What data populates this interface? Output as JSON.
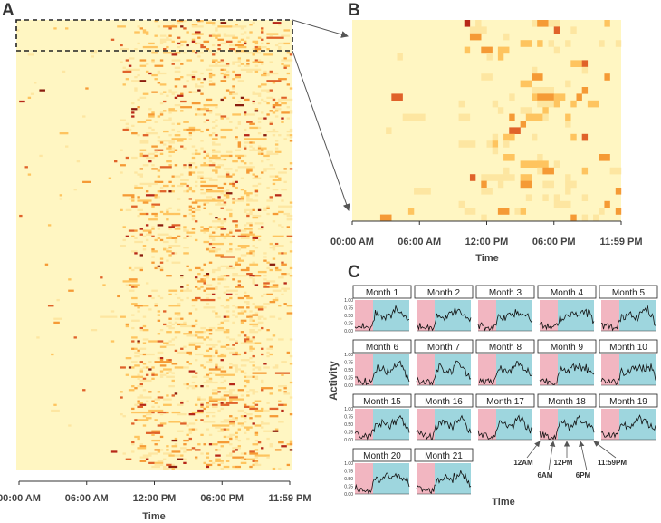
{
  "panels": {
    "a": "A",
    "b": "B",
    "c": "C"
  },
  "chart_data": [
    {
      "id": "A",
      "type": "heatmap",
      "description_label": "A",
      "xlabel": "Time",
      "x_ticks": [
        "00:00 AM",
        "06:00 AM",
        "12:00 PM",
        "06:00 PM",
        "11:59 PM"
      ],
      "x_range_hours": [
        0,
        24
      ],
      "n_rows": 240,
      "bins_per_day": 96,
      "colors": [
        "#fff6c2",
        "#fde6a1",
        "#fec45f",
        "#f59a35",
        "#e0622a",
        "#b72818",
        "#8a1d0e"
      ],
      "highlight": "top rows magnified in panel B"
    },
    {
      "id": "B",
      "type": "heatmap",
      "xlabel": "Time",
      "x_ticks": [
        "00:00 AM",
        "06:00 AM",
        "12:00 PM",
        "06:00 PM",
        "11:59 PM"
      ],
      "x_range_hours": [
        0,
        24
      ],
      "n_rows": 30,
      "bins_per_day": 48
    },
    {
      "id": "C",
      "type": "line",
      "ylabel": "Activity",
      "xlabel": "Time",
      "ylim": [
        0,
        1
      ],
      "y_ticks": [
        "1.00",
        "0.75",
        "0.50",
        "0.25",
        "0.00"
      ],
      "shading": {
        "night_color": "#f2b6c1",
        "day_color": "#9ed6de"
      },
      "months": [
        "Month 1",
        "Month 2",
        "Month 3",
        "Month 4",
        "Month 5",
        "Month 6",
        "Month 7",
        "Month 8",
        "Month 9",
        "Month 10",
        "Month 15",
        "Month 16",
        "Month 17",
        "Month 18",
        "Month 19",
        "Month 20",
        "Month 21"
      ],
      "annotations": [
        "12AM",
        "6AM",
        "12PM",
        "6PM",
        "11:59PM"
      ],
      "typical_profile": {
        "night_level": 0.15,
        "day_level": 0.55,
        "peak_hour": 18
      }
    }
  ]
}
